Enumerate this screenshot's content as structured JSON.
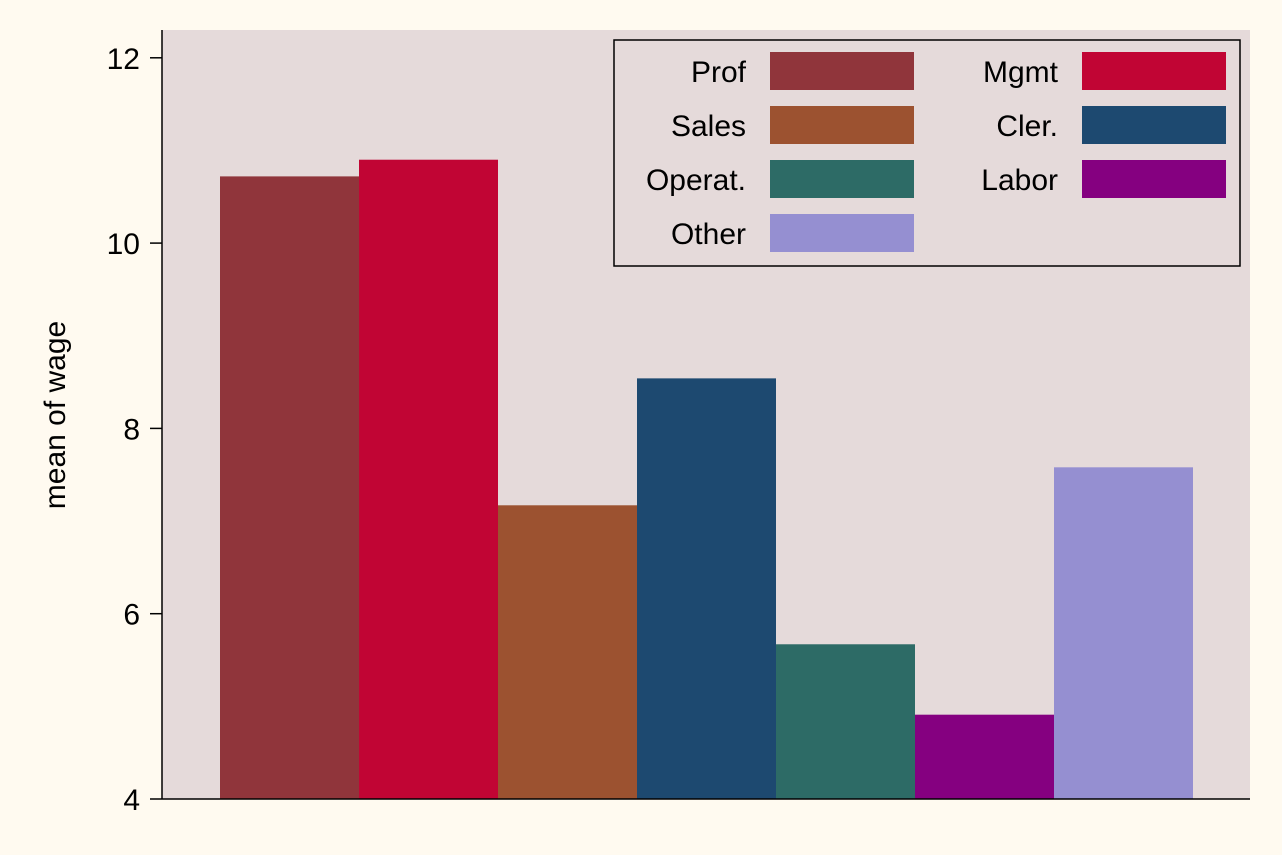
{
  "chart_data": {
    "type": "bar",
    "ylabel": "mean of wage",
    "ylim": [
      4,
      12.3
    ],
    "yticks": [
      4,
      6,
      8,
      10,
      12
    ],
    "series": [
      {
        "name": "Prof",
        "value": 10.72,
        "color": "#90353b"
      },
      {
        "name": "Mgmt",
        "value": 10.9,
        "color": "#c10534"
      },
      {
        "name": "Sales",
        "value": 7.17,
        "color": "#9c5230"
      },
      {
        "name": "Cler.",
        "value": 8.54,
        "color": "#1d4970"
      },
      {
        "name": "Operat.",
        "value": 5.67,
        "color": "#2d6b66"
      },
      {
        "name": "Labor",
        "value": 4.91,
        "color": "#850080"
      },
      {
        "name": "Other",
        "value": 7.58,
        "color": "#958fd1"
      }
    ],
    "legend": {
      "position": "top-right",
      "order": [
        "Prof",
        "Mgmt",
        "Sales",
        "Cler.",
        "Operat.",
        "Labor",
        "Other"
      ]
    },
    "plot_background": "#e5dada",
    "page_background": "#fffaf0"
  }
}
